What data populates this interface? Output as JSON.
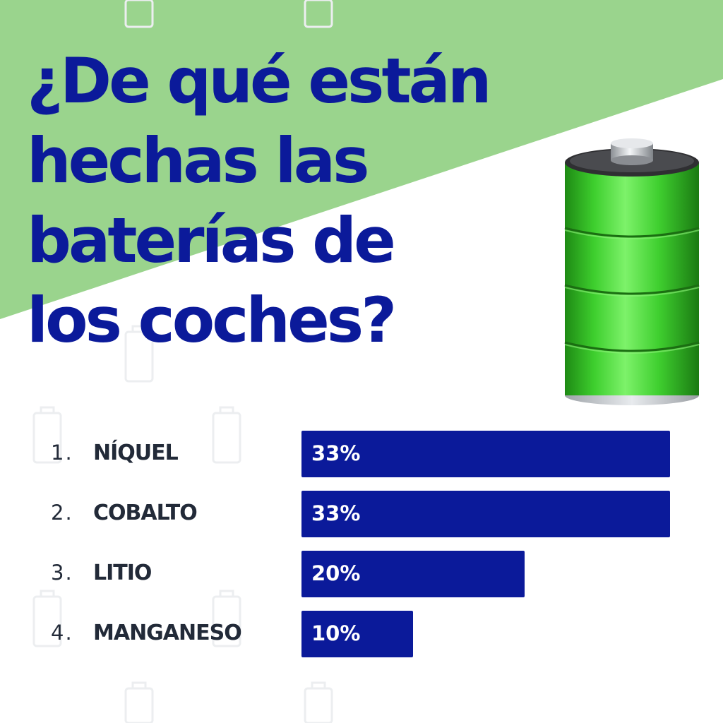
{
  "chart_data": {
    "type": "bar",
    "orientation": "horizontal",
    "title": "¿De qué están hechas las baterías de los coches?",
    "title_lines": [
      "¿De qué están",
      "hechas las",
      "baterías de",
      "los coches?"
    ],
    "categories": [
      "NÍQUEL",
      "COBALTO",
      "LITIO",
      "MANGANESO"
    ],
    "indices": [
      "1.",
      "2.",
      "3.",
      "4."
    ],
    "values": [
      33,
      33,
      20,
      10
    ],
    "value_labels": [
      "33%",
      "33%",
      "20%",
      "10%"
    ],
    "xlim": [
      0,
      33
    ],
    "bar_color": "#0b1a9a",
    "grid": false
  },
  "colors": {
    "background": "#ffffff",
    "accent_green": "#9ad48d",
    "title": "#0b1a9a",
    "label_text": "#222a38",
    "battery_green": "#3ecf2e"
  },
  "icons": {
    "illustration": "battery-icon",
    "background_pattern": "battery-outline-icon"
  }
}
